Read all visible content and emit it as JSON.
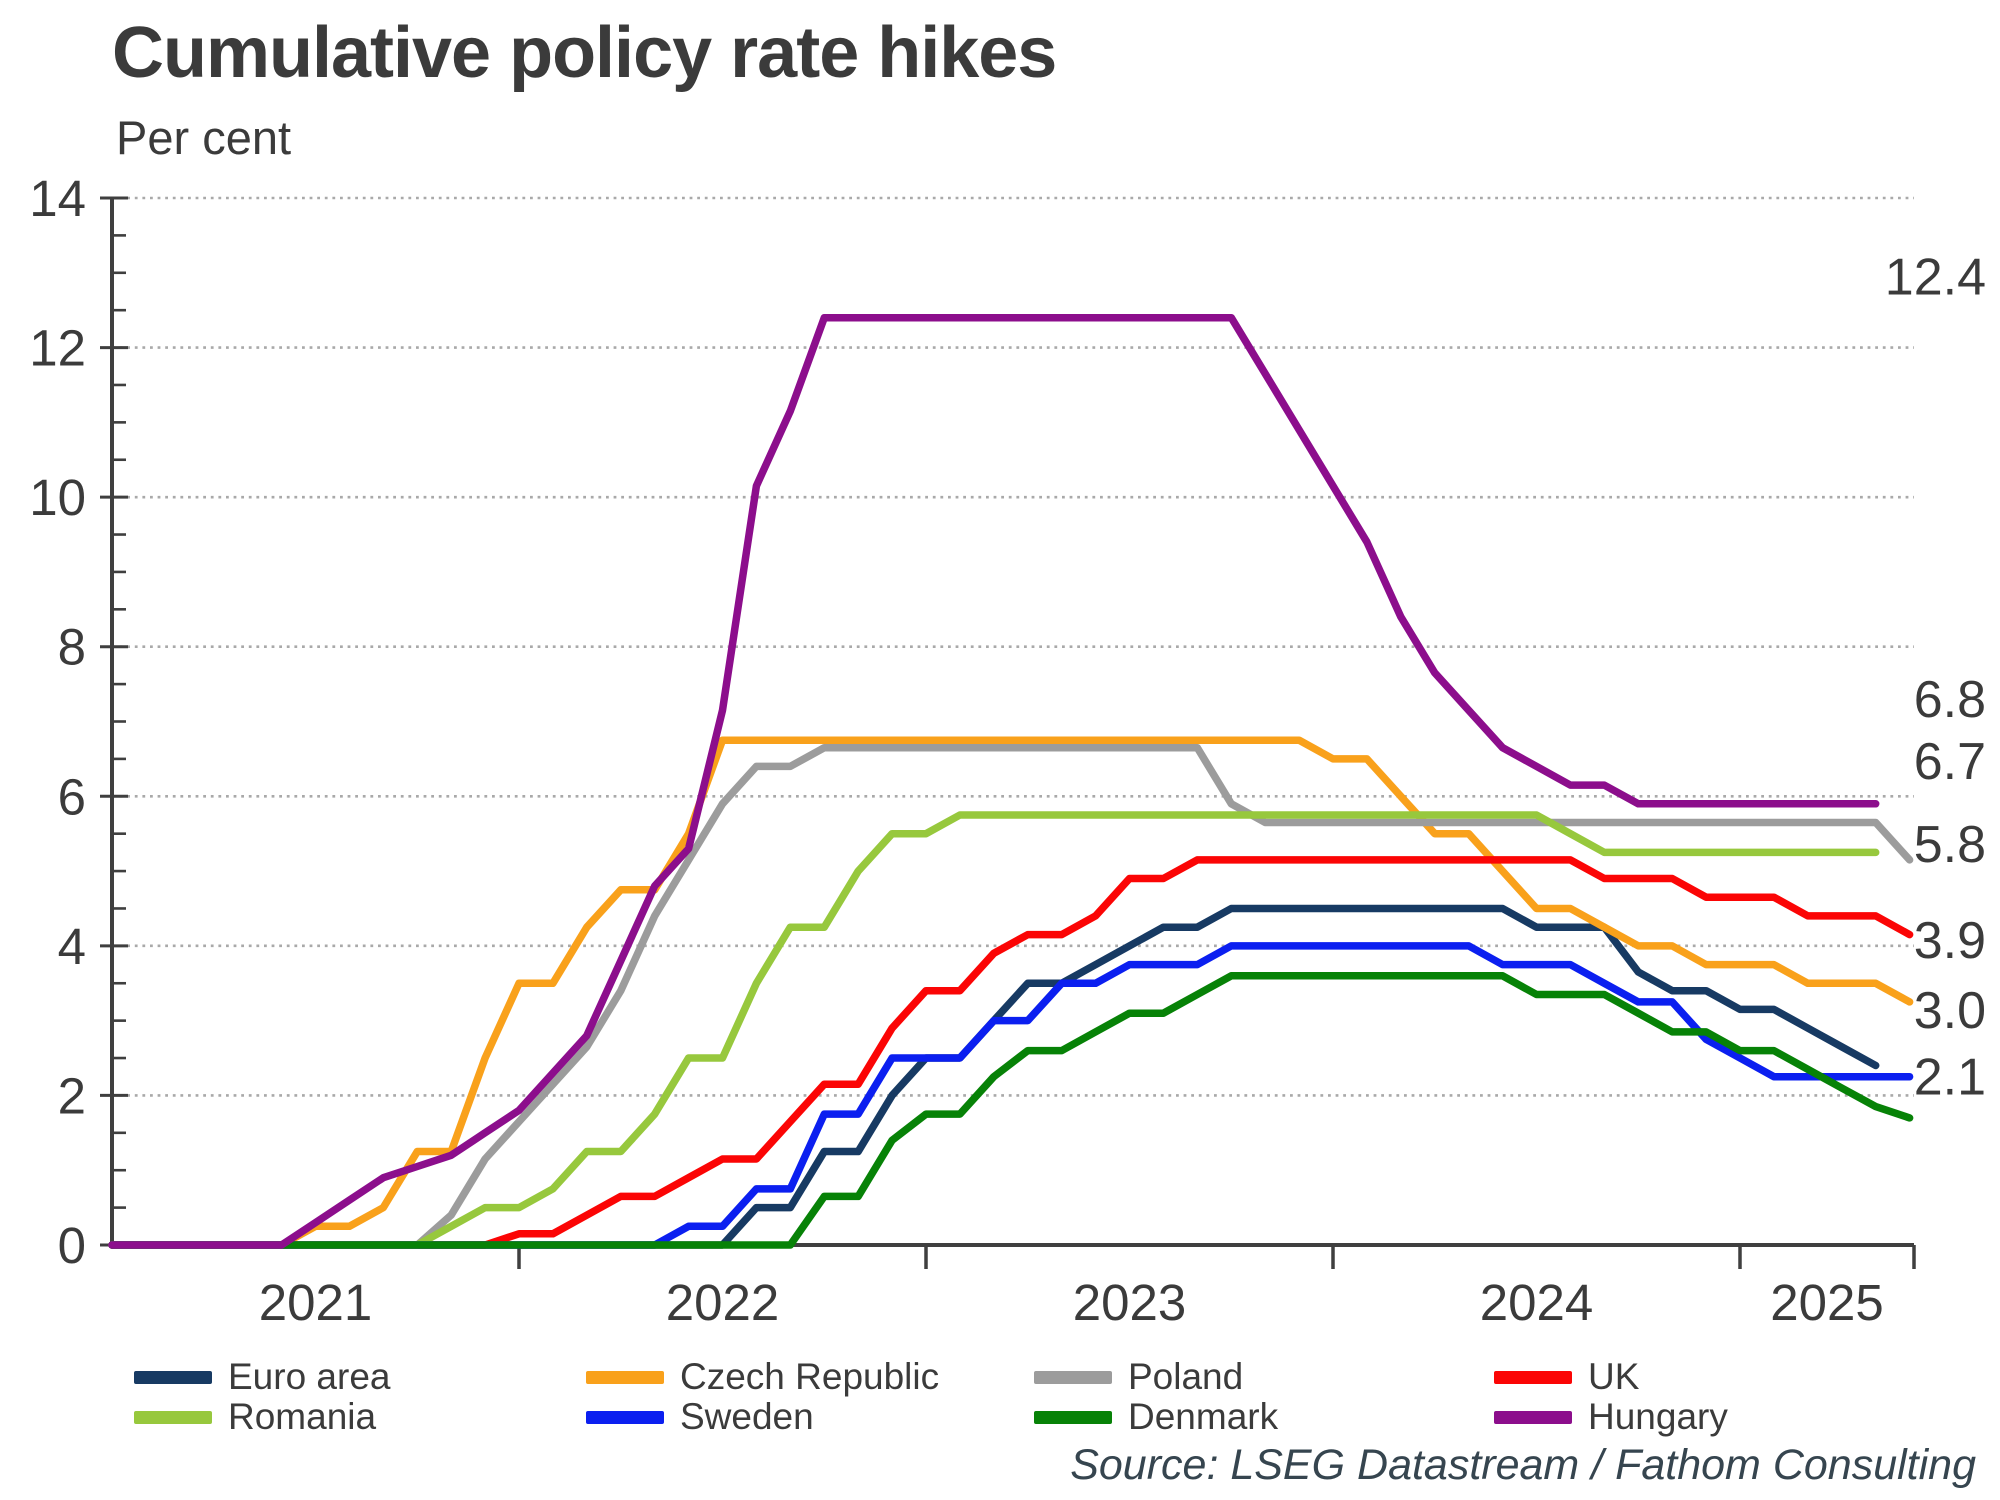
{
  "title": "Cumulative policy rate hikes",
  "subtitle": "Per cent",
  "source": "Source: LSEG Datastream / Fathom Consulting",
  "axes": {
    "y_ticks": [
      0,
      2,
      4,
      6,
      8,
      10,
      12,
      14
    ],
    "x_ticks": [
      "2021",
      "2022",
      "2023",
      "2024",
      "2025"
    ]
  },
  "legend": {
    "rows": [
      [
        "Euro area",
        "Czech Republic",
        "Poland",
        "UK"
      ],
      [
        "Romania",
        "Sweden",
        "Denmark",
        "Hungary"
      ]
    ]
  },
  "chart_data": {
    "type": "line",
    "title": "Cumulative policy rate hikes",
    "ylabel": "Per cent",
    "ylim": [
      0,
      14
    ],
    "ytick_step": 2,
    "y_minor_tick_step": 0.5,
    "grid": "dotted horizontal lines at even values",
    "legend_position": "bottom",
    "x_timeline": {
      "start": "2020-12",
      "step": "monthly",
      "year_labels": [
        "2021",
        "2022",
        "2023",
        "2024",
        "2025"
      ]
    },
    "series": [
      {
        "name": "Euro area",
        "color": "#173A63",
        "values": [
          0,
          0,
          0,
          0,
          0,
          0,
          0,
          0,
          0,
          0,
          0,
          0,
          0,
          0,
          0,
          0,
          0,
          0,
          0,
          0.5,
          0.5,
          1.25,
          1.25,
          2.0,
          2.5,
          2.5,
          3.0,
          3.5,
          3.5,
          3.75,
          4.0,
          4.25,
          4.25,
          4.5,
          4.5,
          4.5,
          4.5,
          4.5,
          4.5,
          4.5,
          4.5,
          4.5,
          4.25,
          4.25,
          4.25,
          3.65,
          3.4,
          3.4,
          3.15,
          3.15,
          2.9,
          2.65,
          2.4
        ]
      },
      {
        "name": "Czech Republic",
        "color": "#F9A11B",
        "values": [
          0,
          0,
          0,
          0,
          0,
          0,
          0.25,
          0.25,
          0.5,
          1.25,
          1.25,
          2.5,
          3.5,
          3.5,
          4.25,
          4.75,
          4.75,
          5.5,
          6.75,
          6.75,
          6.75,
          6.75,
          6.75,
          6.75,
          6.75,
          6.75,
          6.75,
          6.75,
          6.75,
          6.75,
          6.75,
          6.75,
          6.75,
          6.75,
          6.75,
          6.75,
          6.5,
          6.5,
          6.0,
          5.5,
          5.5,
          5.0,
          4.5,
          4.5,
          4.25,
          4.0,
          4.0,
          3.75,
          3.75,
          3.75,
          3.5,
          3.5,
          3.5,
          3.25
        ]
      },
      {
        "name": "Poland",
        "color": "#9C9C9C",
        "values": [
          0,
          0,
          0,
          0,
          0,
          0,
          0,
          0,
          0,
          0,
          0.4,
          1.15,
          1.65,
          2.15,
          2.65,
          3.4,
          4.4,
          5.15,
          5.9,
          6.4,
          6.4,
          6.65,
          6.65,
          6.65,
          6.65,
          6.65,
          6.65,
          6.65,
          6.65,
          6.65,
          6.65,
          6.65,
          6.65,
          5.9,
          5.65,
          5.65,
          5.65,
          5.65,
          5.65,
          5.65,
          5.65,
          5.65,
          5.65,
          5.65,
          5.65,
          5.65,
          5.65,
          5.65,
          5.65,
          5.65,
          5.65,
          5.65,
          5.65,
          5.15
        ]
      },
      {
        "name": "UK",
        "color": "#FB0505",
        "values": [
          0,
          0,
          0,
          0,
          0,
          0,
          0,
          0,
          0,
          0,
          0,
          0,
          0.15,
          0.15,
          0.4,
          0.65,
          0.65,
          0.9,
          1.15,
          1.15,
          1.65,
          2.15,
          2.15,
          2.9,
          3.4,
          3.4,
          3.9,
          4.15,
          4.15,
          4.4,
          4.9,
          4.9,
          5.15,
          5.15,
          5.15,
          5.15,
          5.15,
          5.15,
          5.15,
          5.15,
          5.15,
          5.15,
          5.15,
          5.15,
          4.9,
          4.9,
          4.9,
          4.65,
          4.65,
          4.65,
          4.4,
          4.4,
          4.4,
          4.15
        ]
      },
      {
        "name": "Romania",
        "color": "#97C83D",
        "values": [
          0,
          0,
          0,
          0,
          0,
          0,
          0,
          0,
          0,
          0,
          0.25,
          0.5,
          0.5,
          0.75,
          1.25,
          1.25,
          1.75,
          2.5,
          2.5,
          3.5,
          4.25,
          4.25,
          5.0,
          5.5,
          5.5,
          5.75,
          5.75,
          5.75,
          5.75,
          5.75,
          5.75,
          5.75,
          5.75,
          5.75,
          5.75,
          5.75,
          5.75,
          5.75,
          5.75,
          5.75,
          5.75,
          5.75,
          5.75,
          5.5,
          5.25,
          5.25,
          5.25,
          5.25,
          5.25,
          5.25,
          5.25,
          5.25,
          5.25
        ]
      },
      {
        "name": "Sweden",
        "color": "#0B1FF0",
        "values": [
          0,
          0,
          0,
          0,
          0,
          0,
          0,
          0,
          0,
          0,
          0,
          0,
          0,
          0,
          0,
          0,
          0,
          0.25,
          0.25,
          0.75,
          0.75,
          1.75,
          1.75,
          2.5,
          2.5,
          2.5,
          3.0,
          3.0,
          3.5,
          3.5,
          3.75,
          3.75,
          3.75,
          4.0,
          4.0,
          4.0,
          4.0,
          4.0,
          4.0,
          4.0,
          4.0,
          3.75,
          3.75,
          3.75,
          3.5,
          3.25,
          3.25,
          2.75,
          2.5,
          2.25,
          2.25,
          2.25,
          2.25,
          2.25
        ]
      },
      {
        "name": "Denmark",
        "color": "#078207",
        "values": [
          0,
          0,
          0,
          0,
          0,
          0,
          0,
          0,
          0,
          0,
          0,
          0,
          0,
          0,
          0,
          0,
          0,
          0,
          0,
          0,
          0,
          0.65,
          0.65,
          1.4,
          1.75,
          1.75,
          2.25,
          2.6,
          2.6,
          2.85,
          3.1,
          3.1,
          3.35,
          3.6,
          3.6,
          3.6,
          3.6,
          3.6,
          3.6,
          3.6,
          3.6,
          3.6,
          3.35,
          3.35,
          3.35,
          3.1,
          2.85,
          2.85,
          2.6,
          2.6,
          2.35,
          2.1,
          1.85,
          1.7
        ]
      },
      {
        "name": "Hungary",
        "color": "#8C0E8C",
        "values": [
          0,
          0,
          0,
          0,
          0,
          0,
          0.3,
          0.6,
          0.9,
          1.05,
          1.2,
          1.5,
          1.8,
          2.3,
          2.8,
          3.8,
          4.8,
          5.3,
          7.15,
          10.15,
          11.15,
          12.4,
          12.4,
          12.4,
          12.4,
          12.4,
          12.4,
          12.4,
          12.4,
          12.4,
          12.4,
          12.4,
          12.4,
          12.4,
          11.65,
          10.9,
          10.15,
          9.4,
          8.4,
          7.65,
          7.15,
          6.65,
          6.4,
          6.15,
          6.15,
          5.9,
          5.9,
          5.9,
          5.9,
          5.9,
          5.9,
          5.9,
          5.9
        ]
      }
    ],
    "annotations": [
      {
        "text": "12.4",
        "value": 12.95
      },
      {
        "text": "6.8",
        "value": 7.3
      },
      {
        "text": "6.7",
        "value": 6.47
      },
      {
        "text": "5.8",
        "value": 5.36
      },
      {
        "text": "3.9",
        "value": 4.08
      },
      {
        "text": "3.0",
        "value": 3.14
      },
      {
        "text": "2.1",
        "value": 2.25
      }
    ]
  }
}
